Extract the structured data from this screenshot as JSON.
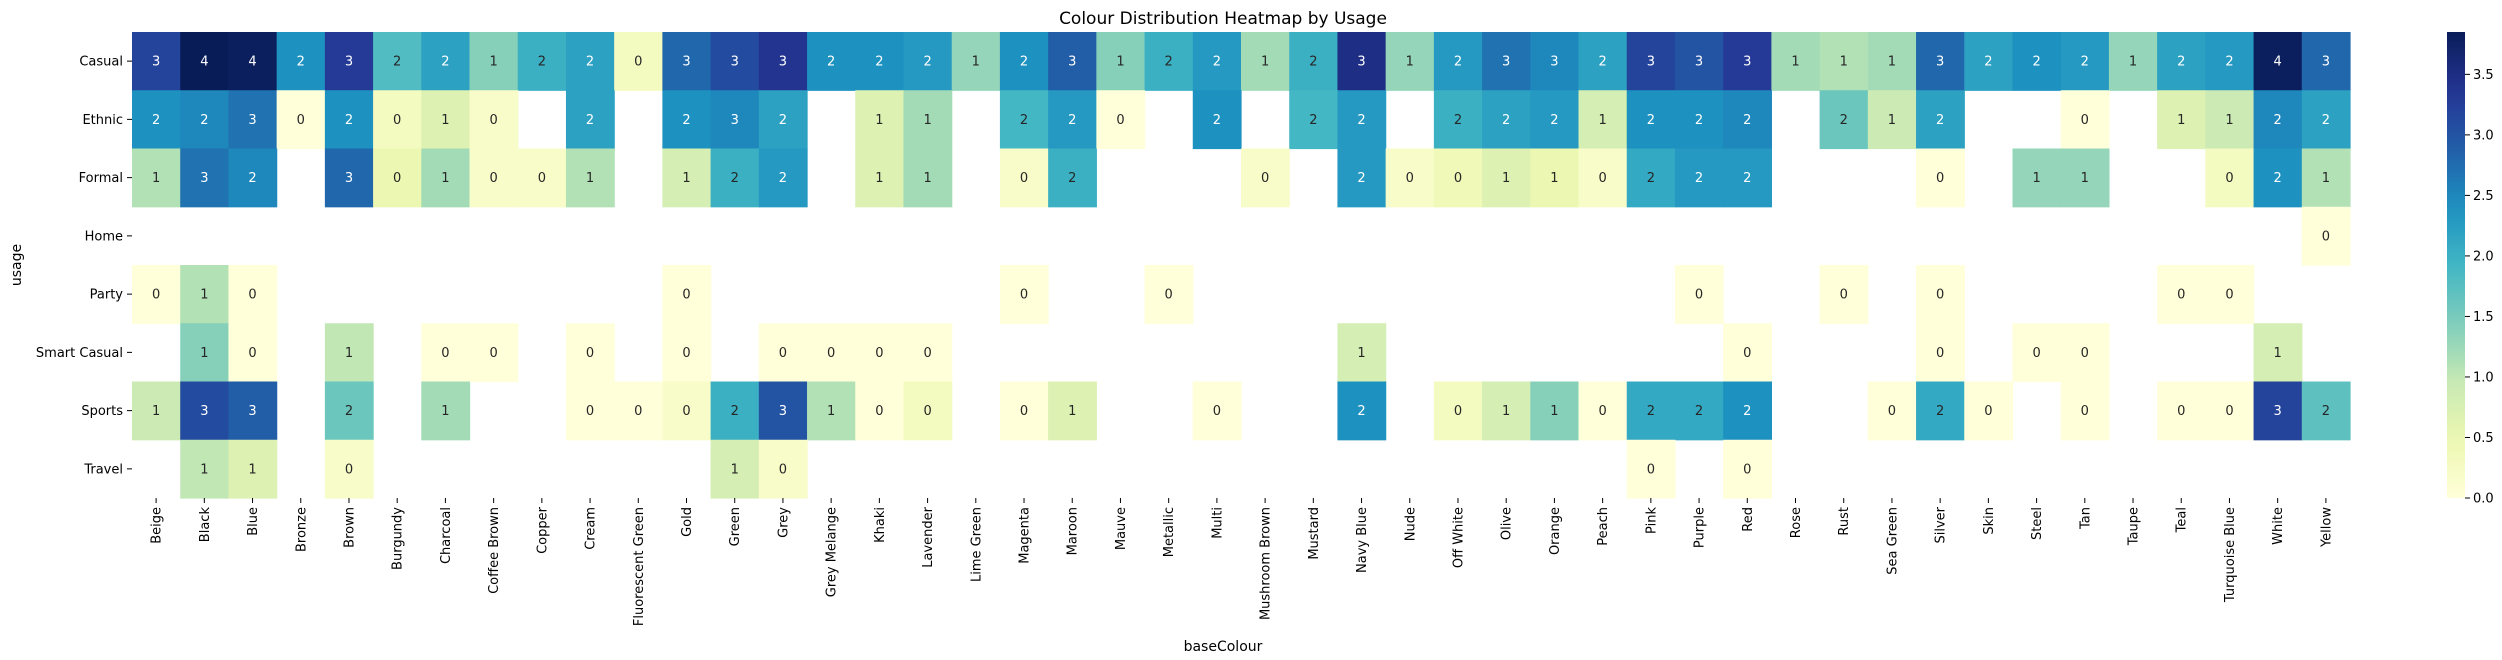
{
  "chart_data": {
    "type": "heatmap",
    "title": "Colour Distribution Heatmap by Usage",
    "xlabel": "baseColour",
    "ylabel": "usage",
    "x": [
      "Beige",
      "Black",
      "Blue",
      "Bronze",
      "Brown",
      "Burgundy",
      "Charcoal",
      "Coffee Brown",
      "Copper",
      "Cream",
      "Fluorescent Green",
      "Gold",
      "Green",
      "Grey",
      "Grey Melange",
      "Khaki",
      "Lavender",
      "Lime Green",
      "Magenta",
      "Maroon",
      "Mauve",
      "Metallic",
      "Multi",
      "Mushroom Brown",
      "Mustard",
      "Navy Blue",
      "Nude",
      "Off White",
      "Olive",
      "Orange",
      "Peach",
      "Pink",
      "Purple",
      "Red",
      "Rose",
      "Rust",
      "Sea Green",
      "Silver",
      "Skin",
      "Steel",
      "Tan",
      "Taupe",
      "Teal",
      "Turquoise Blue",
      "White",
      "Yellow"
    ],
    "y": [
      "Casual",
      "Ethnic",
      "Formal",
      "Home",
      "Party",
      "Smart Casual",
      "Sports",
      "Travel"
    ],
    "values": [
      [
        3.2,
        3.9,
        3.8,
        2.4,
        3.3,
        1.8,
        2.2,
        1.4,
        2.0,
        2.2,
        0.3,
        2.8,
        3.1,
        3.4,
        2.4,
        2.4,
        2.3,
        1.3,
        2.4,
        2.9,
        1.4,
        2.0,
        2.3,
        1.2,
        2.0,
        3.5,
        1.3,
        2.3,
        2.7,
        2.5,
        2.2,
        3.2,
        3.0,
        3.3,
        1.2,
        1.1,
        1.2,
        2.8,
        2.2,
        2.4,
        2.3,
        1.3,
        2.2,
        2.3,
        3.8,
        2.8
      ],
      [
        2.4,
        2.5,
        2.7,
        0.0,
        2.4,
        0.3,
        0.7,
        0.2,
        null,
        2.2,
        null,
        2.4,
        2.5,
        2.2,
        null,
        0.7,
        1.2,
        null,
        1.9,
        2.3,
        0.0,
        null,
        2.4,
        null,
        1.9,
        2.3,
        null,
        2.0,
        2.2,
        2.3,
        0.8,
        2.4,
        2.4,
        2.5,
        null,
        1.6,
        0.9,
        2.2,
        null,
        null,
        0.0,
        null,
        0.7,
        0.9,
        2.5,
        2.2
      ],
      [
        1.1,
        2.7,
        2.5,
        null,
        2.8,
        0.5,
        1.2,
        0.2,
        0.2,
        1.1,
        null,
        0.8,
        2.0,
        2.3,
        null,
        0.7,
        1.2,
        null,
        0.2,
        2.0,
        null,
        null,
        null,
        0.2,
        null,
        2.3,
        0.2,
        0.4,
        0.7,
        0.5,
        0.2,
        2.1,
        2.3,
        2.3,
        null,
        null,
        null,
        0.0,
        null,
        1.3,
        1.3,
        null,
        null,
        0.3,
        2.4,
        1.1
      ],
      [
        null,
        null,
        null,
        null,
        null,
        null,
        null,
        null,
        null,
        null,
        null,
        null,
        null,
        null,
        null,
        null,
        null,
        null,
        null,
        null,
        null,
        null,
        null,
        null,
        null,
        null,
        null,
        null,
        null,
        null,
        null,
        null,
        null,
        null,
        null,
        null,
        null,
        null,
        null,
        null,
        null,
        null,
        null,
        null,
        null,
        0.0
      ],
      [
        0.0,
        1.1,
        0.0,
        null,
        null,
        null,
        null,
        null,
        null,
        null,
        null,
        0.0,
        null,
        null,
        null,
        null,
        null,
        null,
        0.0,
        null,
        null,
        0.0,
        null,
        null,
        null,
        null,
        null,
        null,
        null,
        null,
        null,
        null,
        0.0,
        null,
        null,
        0.0,
        null,
        0.0,
        null,
        null,
        null,
        null,
        0.0,
        0.0,
        null,
        null
      ],
      [
        null,
        1.4,
        0.0,
        null,
        1.0,
        null,
        0.0,
        0.0,
        null,
        0.0,
        null,
        0.0,
        null,
        0.0,
        0.0,
        0.0,
        0.0,
        null,
        null,
        null,
        null,
        null,
        null,
        null,
        null,
        0.8,
        null,
        null,
        null,
        null,
        null,
        null,
        null,
        0.0,
        null,
        null,
        null,
        0.0,
        null,
        0.0,
        0.0,
        null,
        null,
        null,
        0.8,
        null
      ],
      [
        0.9,
        3.1,
        2.9,
        null,
        1.6,
        null,
        1.2,
        null,
        null,
        0.0,
        0.0,
        0.2,
        2.0,
        3.0,
        1.1,
        0.0,
        0.3,
        null,
        0.0,
        0.7,
        null,
        null,
        0.0,
        null,
        null,
        2.4,
        null,
        0.3,
        0.8,
        1.4,
        0.0,
        2.1,
        2.1,
        2.4,
        null,
        null,
        0.0,
        2.1,
        0.0,
        null,
        0.0,
        null,
        0.0,
        0.0,
        3.2,
        1.7
      ],
      [
        null,
        1.0,
        0.7,
        null,
        0.2,
        null,
        null,
        null,
        null,
        null,
        null,
        null,
        0.8,
        0.2,
        null,
        null,
        null,
        null,
        null,
        null,
        null,
        null,
        null,
        null,
        null,
        null,
        null,
        null,
        null,
        null,
        null,
        0.0,
        null,
        0.0,
        null,
        null,
        null,
        null,
        null,
        null,
        null,
        null,
        null,
        null,
        null,
        null
      ]
    ],
    "annotations": [
      [
        3,
        4,
        4,
        2,
        3,
        2,
        2,
        1,
        2,
        2,
        0,
        3,
        3,
        3,
        2,
        2,
        2,
        1,
        2,
        3,
        1,
        2,
        2,
        1,
        2,
        3,
        1,
        2,
        3,
        3,
        2,
        3,
        3,
        3,
        1,
        1,
        1,
        3,
        2,
        2,
        2,
        1,
        2,
        2,
        4,
        3
      ],
      [
        2,
        2,
        3,
        0,
        2,
        0,
        1,
        0,
        null,
        2,
        null,
        2,
        3,
        2,
        null,
        1,
        1,
        null,
        2,
        2,
        0,
        null,
        2,
        null,
        2,
        2,
        null,
        2,
        2,
        2,
        1,
        2,
        2,
        2,
        null,
        2,
        1,
        2,
        null,
        null,
        0,
        null,
        1,
        1,
        2,
        2
      ],
      [
        1,
        3,
        2,
        null,
        3,
        0,
        1,
        0,
        0,
        1,
        null,
        1,
        2,
        2,
        null,
        1,
        1,
        null,
        0,
        2,
        null,
        null,
        null,
        0,
        null,
        2,
        0,
        0,
        1,
        1,
        0,
        2,
        2,
        2,
        null,
        null,
        null,
        0,
        null,
        1,
        1,
        null,
        null,
        0,
        2,
        1
      ],
      [
        null,
        null,
        null,
        null,
        null,
        null,
        null,
        null,
        null,
        null,
        null,
        null,
        null,
        null,
        null,
        null,
        null,
        null,
        null,
        null,
        null,
        null,
        null,
        null,
        null,
        null,
        null,
        null,
        null,
        null,
        null,
        null,
        null,
        null,
        null,
        null,
        null,
        null,
        null,
        null,
        null,
        null,
        null,
        null,
        null,
        0
      ],
      [
        0,
        1,
        0,
        null,
        null,
        null,
        null,
        null,
        null,
        null,
        null,
        0,
        null,
        null,
        null,
        null,
        null,
        null,
        0,
        null,
        null,
        0,
        null,
        null,
        null,
        null,
        null,
        null,
        null,
        null,
        null,
        null,
        0,
        null,
        null,
        0,
        null,
        0,
        null,
        null,
        null,
        null,
        0,
        0,
        null,
        null
      ],
      [
        null,
        1,
        0,
        null,
        1,
        null,
        0,
        0,
        null,
        0,
        null,
        0,
        null,
        0,
        0,
        0,
        0,
        null,
        null,
        null,
        null,
        null,
        null,
        null,
        null,
        1,
        null,
        null,
        null,
        null,
        null,
        null,
        null,
        0,
        null,
        null,
        null,
        0,
        null,
        0,
        0,
        null,
        null,
        null,
        1,
        null
      ],
      [
        1,
        3,
        3,
        null,
        2,
        null,
        1,
        null,
        null,
        0,
        0,
        0,
        2,
        3,
        1,
        0,
        0,
        null,
        0,
        1,
        null,
        null,
        0,
        null,
        null,
        2,
        null,
        0,
        1,
        1,
        0,
        2,
        2,
        2,
        null,
        null,
        0,
        2,
        0,
        null,
        0,
        null,
        0,
        0,
        3,
        2
      ],
      [
        null,
        1,
        1,
        null,
        0,
        null,
        null,
        null,
        null,
        null,
        null,
        null,
        1,
        0,
        null,
        null,
        null,
        null,
        null,
        null,
        null,
        null,
        null,
        null,
        null,
        null,
        null,
        null,
        null,
        null,
        null,
        0,
        null,
        0,
        null,
        null,
        null,
        null,
        null,
        null,
        null,
        null,
        null,
        null,
        null,
        null
      ]
    ],
    "colorbar": {
      "cmap": "YlGnBu",
      "vmin": 0.0,
      "vmax": 3.85,
      "ticks": [
        "0.0",
        "0.5",
        "1.0",
        "1.5",
        "2.0",
        "2.5",
        "3.0",
        "3.5"
      ],
      "tick_values": [
        0.0,
        0.5,
        1.0,
        1.5,
        2.0,
        2.5,
        3.0,
        3.5
      ]
    }
  }
}
